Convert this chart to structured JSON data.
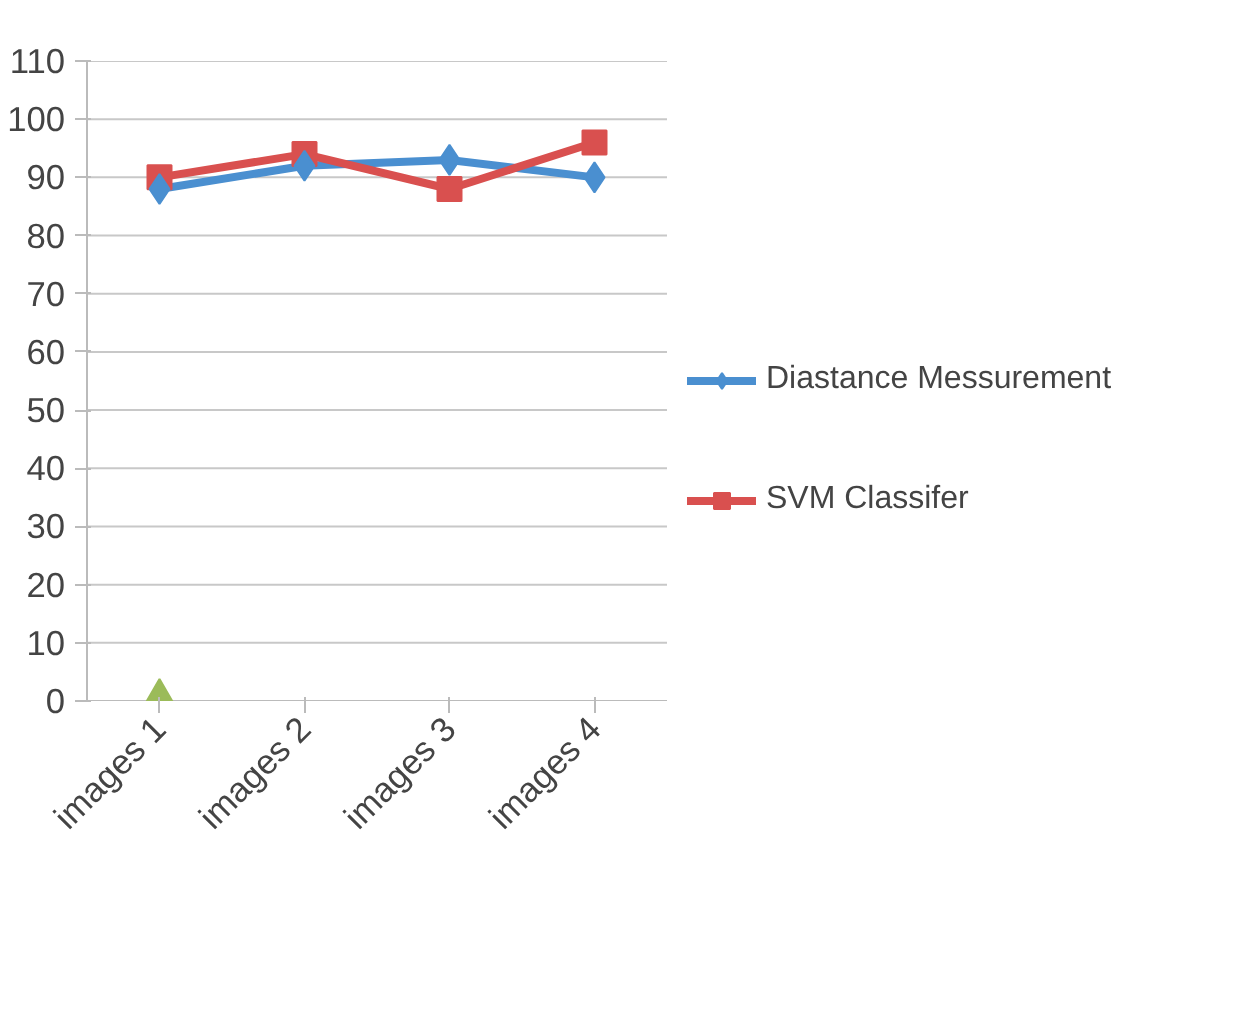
{
  "chart_data": {
    "type": "line",
    "categories": [
      "images 1",
      "images 2",
      "images 3",
      "images 4"
    ],
    "series": [
      {
        "name": "Diastance Messurement",
        "color": "#4a8fd0",
        "marker": "diamond",
        "values": [
          88,
          92,
          93,
          90
        ]
      },
      {
        "name": "SVM Classifer",
        "color": "#d9504f",
        "marker": "square",
        "values": [
          90,
          94,
          88,
          96
        ]
      },
      {
        "type": "scatter",
        "color": "#9bbb59",
        "marker": "triangle",
        "values": [
          0,
          null,
          null,
          null
        ]
      }
    ],
    "ylim": [
      0,
      110
    ],
    "yticks": [
      0,
      10,
      20,
      30,
      40,
      50,
      60,
      70,
      80,
      90,
      100,
      110
    ],
    "grid": "y",
    "legend": "right",
    "line_style": "solid"
  }
}
